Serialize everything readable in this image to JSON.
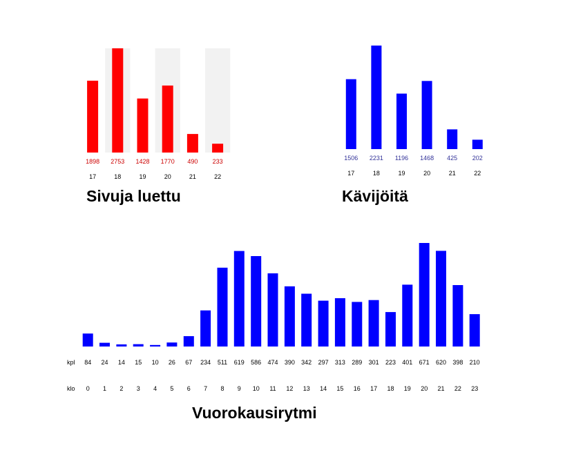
{
  "chart_data": [
    {
      "type": "bar",
      "title": "Sivuja luettu",
      "categories": [
        "17",
        "18",
        "19",
        "20",
        "21",
        "22"
      ],
      "values": [
        1898,
        2753,
        1428,
        1770,
        490,
        233
      ],
      "color": "#ff0000",
      "label_color": "#cc0000",
      "band_color": "#f2f2f2",
      "alternating_bands": true
    },
    {
      "type": "bar",
      "title": "Kävijöitä",
      "categories": [
        "17",
        "18",
        "19",
        "20",
        "21",
        "22"
      ],
      "values": [
        1506,
        2231,
        1196,
        1468,
        425,
        202
      ],
      "color": "#0000ff",
      "label_color": "#333399",
      "alternating_bands": false
    },
    {
      "type": "bar",
      "title": "Vuorokausirytmi",
      "value_row_label": "kpl",
      "category_row_label": "klo",
      "categories": [
        "0",
        "1",
        "2",
        "3",
        "4",
        "5",
        "6",
        "7",
        "8",
        "9",
        "10",
        "11",
        "12",
        "13",
        "14",
        "15",
        "16",
        "17",
        "18",
        "19",
        "20",
        "21",
        "22",
        "23"
      ],
      "values": [
        84,
        24,
        14,
        15,
        10,
        26,
        67,
        234,
        511,
        619,
        586,
        474,
        390,
        342,
        297,
        313,
        289,
        301,
        223,
        401,
        671,
        620,
        398,
        210
      ],
      "color": "#0000ff",
      "label_color": "#000000"
    }
  ]
}
